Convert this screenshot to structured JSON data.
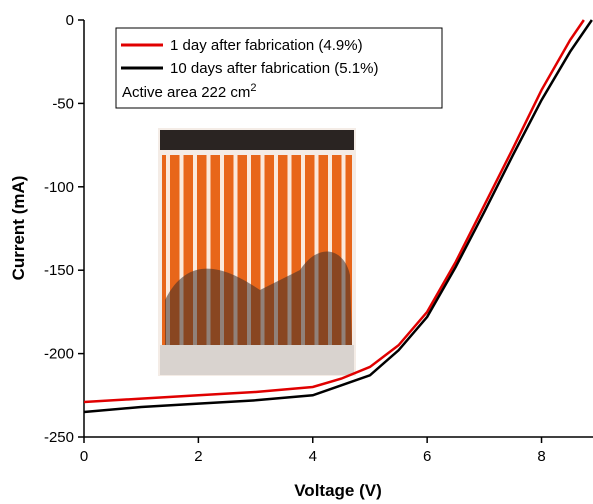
{
  "chart_data": {
    "type": "line",
    "xlabel": "Voltage (V)",
    "ylabel": "Current (mA)",
    "xlim": [
      0,
      8.9
    ],
    "ylim": [
      -250,
      0
    ],
    "xticks": [
      0,
      2,
      4,
      6,
      8
    ],
    "yticks": [
      -250,
      -200,
      -150,
      -100,
      -50,
      0
    ],
    "legend": "upper left",
    "annotation": {
      "text": "Active area 222 cm",
      "superscript": "2"
    },
    "series": [
      {
        "name": "1 day after fabrication (4.9%)",
        "color": "#e00000",
        "x": [
          0,
          1,
          2,
          3,
          4,
          4.5,
          5,
          5.5,
          6,
          6.5,
          7,
          7.5,
          8,
          8.5,
          8.74
        ],
        "values": [
          -229,
          -227,
          -225,
          -223,
          -220,
          -215,
          -208,
          -195,
          -175,
          -145,
          -111,
          -77,
          -42,
          -12,
          0
        ]
      },
      {
        "name": "10 days after fabrication (5.1%)",
        "color": "#000000",
        "x": [
          0,
          1,
          2,
          3,
          4,
          4.5,
          5,
          5.5,
          6,
          6.5,
          7,
          7.5,
          8,
          8.5,
          8.88
        ],
        "values": [
          -235,
          -232,
          -230,
          -228,
          -225,
          -219,
          -213,
          -198,
          -178,
          -148,
          -115,
          -81,
          -48,
          -19,
          0
        ]
      }
    ]
  }
}
